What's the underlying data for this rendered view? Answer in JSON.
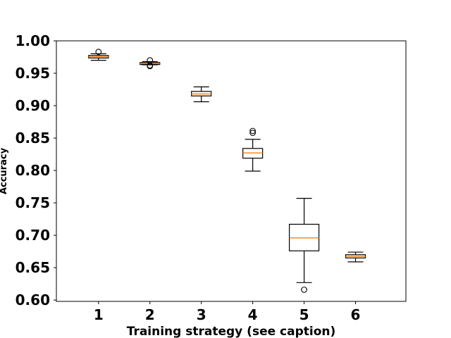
{
  "chart_data": {
    "type": "boxplot",
    "xlabel": "Training strategy (see caption)",
    "ylabel": "Accuracy",
    "ylim": [
      0.598,
      1.0
    ],
    "yticks": [
      "0.60",
      "0.65",
      "0.70",
      "0.75",
      "0.80",
      "0.85",
      "0.90",
      "0.95",
      "1.00"
    ],
    "categories": [
      "1",
      "2",
      "3",
      "4",
      "5",
      "6"
    ],
    "boxes": [
      {
        "category": "1",
        "whisker_low": 0.97,
        "q1": 0.9735,
        "median": 0.9755,
        "q3": 0.9775,
        "whisker_high": 0.98,
        "outliers": [
          0.983
        ]
      },
      {
        "category": "2",
        "whisker_low": 0.963,
        "q1": 0.9635,
        "median": 0.965,
        "q3": 0.9665,
        "whisker_high": 0.968,
        "outliers": [
          0.961,
          0.962,
          0.97
        ]
      },
      {
        "category": "3",
        "whisker_low": 0.906,
        "q1": 0.915,
        "median": 0.918,
        "q3": 0.922,
        "whisker_high": 0.929,
        "outliers": []
      },
      {
        "category": "4",
        "whisker_low": 0.799,
        "q1": 0.819,
        "median": 0.827,
        "q3": 0.834,
        "whisker_high": 0.848,
        "outliers": [
          0.858,
          0.861
        ]
      },
      {
        "category": "5",
        "whisker_low": 0.627,
        "q1": 0.676,
        "median": 0.696,
        "q3": 0.717,
        "whisker_high": 0.757,
        "outliers": [
          0.616
        ]
      },
      {
        "category": "6",
        "whisker_low": 0.659,
        "q1": 0.665,
        "median": 0.6675,
        "q3": 0.67,
        "whisker_high": 0.674,
        "outliers": []
      }
    ],
    "colors": {
      "median": "#ff7f0e",
      "box": "#000000"
    },
    "grid": false,
    "legend": "none"
  }
}
